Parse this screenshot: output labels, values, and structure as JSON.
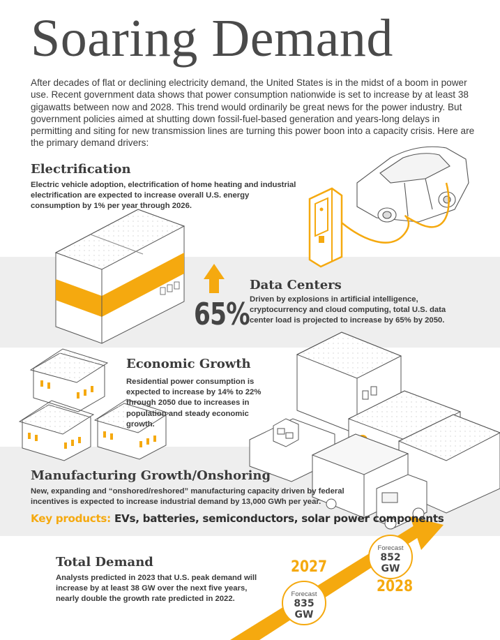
{
  "title": "Soaring Demand",
  "intro": "After decades of flat or declining electricity demand, the United States is in the midst of a boom in power use. Recent government data shows that power consumption nationwide is set to increase by at least 38 gigawatts between now and 2028. This trend would ordinarily be great news for the power industry. But government policies aimed at shutting down fossil-fuel-based generation and years-long delays in permitting and siting for new transmission lines are turning this power boon into a capacity crisis. Here are the primary demand drivers:",
  "sections": {
    "electrification": {
      "heading": "Electrification",
      "text": "Electric vehicle adoption, electrification of home heating and industrial electrification are expected to increase overall U.S. energy consumption by 1% per year through 2026."
    },
    "data_centers": {
      "heading": "Data Centers",
      "text": "Driven by explosions in artificial intelligence, cryptocurrency and cloud computing, total U.S. data center load is projected to increase by 65% by 2050.",
      "stat": "65%"
    },
    "economic_growth": {
      "heading": "Economic Growth",
      "text": "Residential power consumption is expected to increase by 14% to 22% through 2050 due to increases in population and steady economic growth."
    },
    "manufacturing": {
      "heading": "Manufacturing Growth/Onshoring",
      "text": "New, expanding and “onshored/reshored” manufacturing capacity driven by federal incentives is expected to increase industrial demand by 13,000 GWh per year.",
      "key_label": "Key products:",
      "key_items": "EVs, batteries, semiconductors, solar power components"
    },
    "total_demand": {
      "heading": "Total Demand",
      "text": "Analysts predicted in 2023 that U.S. peak demand will increase by at least 38 GW over the next five years, nearly double the growth rate predicted in 2022."
    }
  },
  "forecast": {
    "year_2027": "2027",
    "year_2028": "2028",
    "label": "Forecast",
    "value_2027": "835 GW",
    "value_2028": "852 GW"
  },
  "colors": {
    "accent": "#f5a90f",
    "band": "#eeeeee",
    "text": "#3a3a3a"
  }
}
